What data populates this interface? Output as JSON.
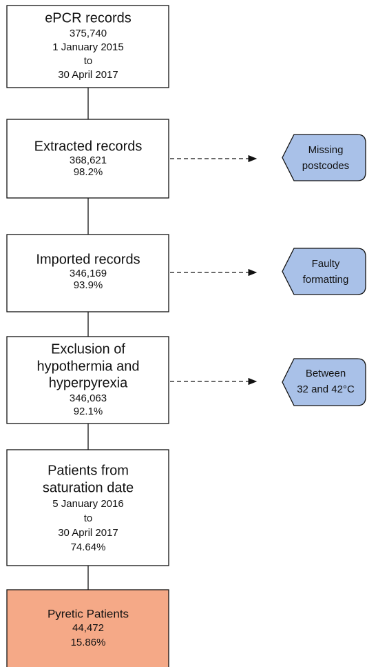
{
  "nodes": [
    {
      "title": [
        "ePCR records"
      ],
      "details": [
        "375,740",
        "1 January 2015",
        "to",
        "30 April 2017"
      ]
    },
    {
      "title": [
        "Extracted records"
      ],
      "details": [
        "368,621",
        "98.2%"
      ]
    },
    {
      "title": [
        "Imported records"
      ],
      "details": [
        "346,169",
        "93.9%"
      ]
    },
    {
      "title": [
        "Exclusion of",
        "hypothermia and",
        "hyperpyrexia"
      ],
      "details": [
        "346,063",
        "92.1%"
      ]
    },
    {
      "title": [
        "Patients from",
        "saturation date"
      ],
      "details": [
        "5 January 2016",
        "to",
        "30 April 2017",
        "74.64%"
      ]
    },
    {
      "title": [
        "Pyretic Patients"
      ],
      "details": [
        "44,472",
        "15.86%"
      ]
    }
  ],
  "notes": [
    {
      "lines": [
        "Missing",
        "postcodes"
      ]
    },
    {
      "lines": [
        "Faulty",
        "formatting"
      ]
    },
    {
      "lines": [
        "Between",
        "32 and 42°C"
      ]
    }
  ]
}
